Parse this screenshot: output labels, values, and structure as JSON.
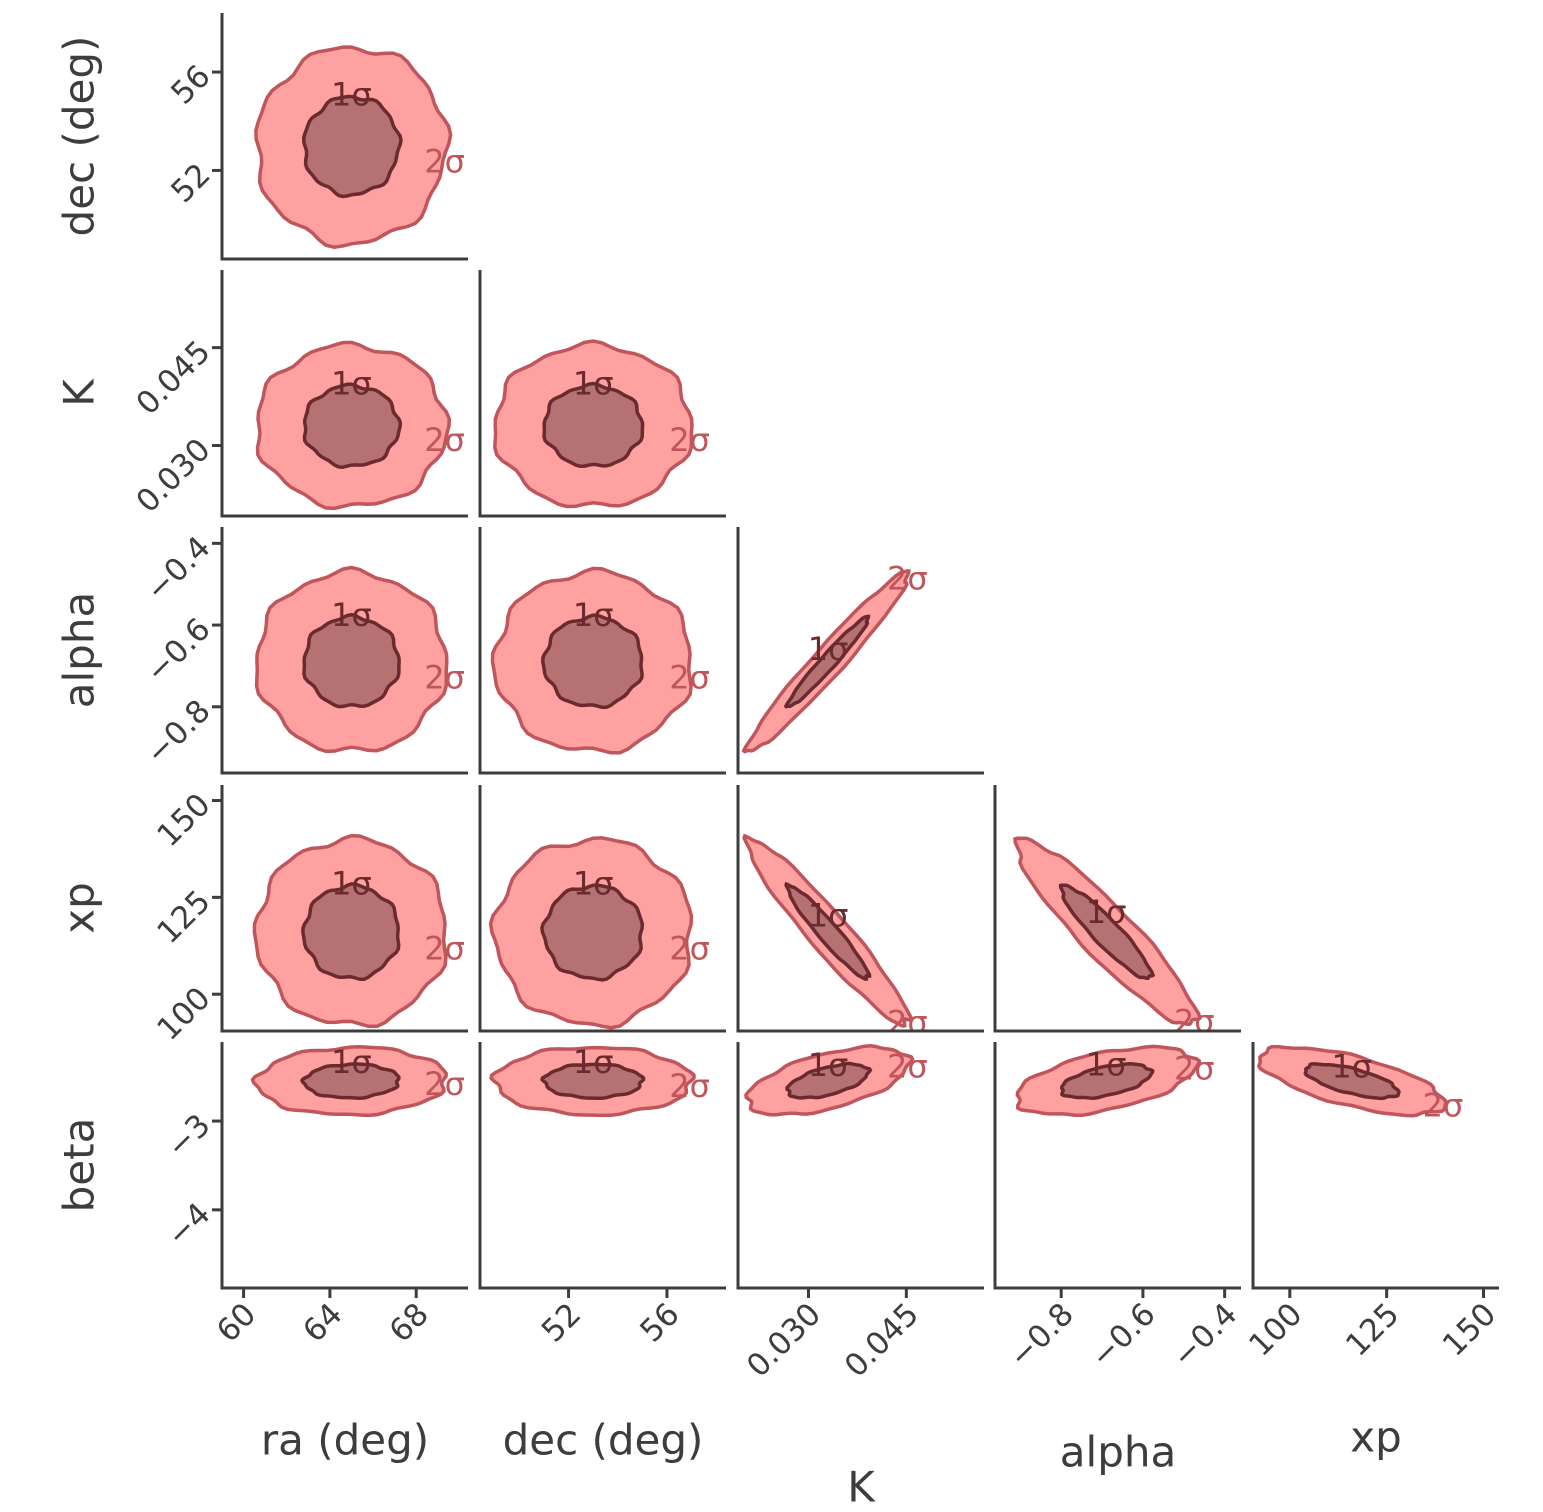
{
  "chart_data": {
    "type": "corner",
    "parameters": [
      {
        "label": "ra (deg)",
        "lim": [
          59.0,
          70.4
        ],
        "ticks": [
          60,
          64,
          68
        ],
        "center": 65,
        "spread": 2.2
      },
      {
        "label": "dec (deg)",
        "lim": [
          48.4,
          58.4
        ],
        "ticks": [
          52,
          56
        ],
        "center": 53,
        "spread": 2.0
      },
      {
        "label": "K",
        "lim": [
          0.0192,
          0.0569
        ],
        "ticks": [
          {
            "value": 0.03,
            "label": "0.030"
          },
          0.045
        ],
        "center": 0.033,
        "spread": 0.0062
      },
      {
        "label": "alpha",
        "lim": [
          -0.962,
          -0.36
        ],
        "ticks": [
          {
            "value": -0.8,
            "label": "−0.8"
          },
          {
            "value": -0.6,
            "label": "−0.6"
          },
          {
            "value": -0.4,
            "label": "−0.4"
          }
        ],
        "center": -0.69,
        "spread": 0.11
      },
      {
        "label": "xp",
        "lim": [
          90.5,
          154
        ],
        "ticks": [
          100,
          125,
          150
        ],
        "center": 116,
        "spread": 12
      },
      {
        "label": "beta",
        "lim": [
          -4.88,
          -2.11
        ],
        "ticks": [
          {
            "value": -3,
            "label": "−3"
          },
          {
            "value": -4,
            "label": "−4"
          }
        ],
        "center": -2.55,
        "spread": 0.19
      }
    ],
    "correlations": [
      [
        0.02
      ],
      [
        0.0,
        0.0
      ],
      [
        0.0,
        0.0,
        0.97
      ],
      [
        0.0,
        0.0,
        -0.95,
        -0.92
      ],
      [
        0.05,
        0.0,
        0.55,
        0.5,
        -0.65
      ]
    ],
    "levels": [
      {
        "label": "2σ",
        "color": "#ff9c9c",
        "edge": "#c0555b"
      },
      {
        "label": "1σ",
        "color": "#b27070",
        "edge": "#6b2b2e"
      }
    ]
  }
}
